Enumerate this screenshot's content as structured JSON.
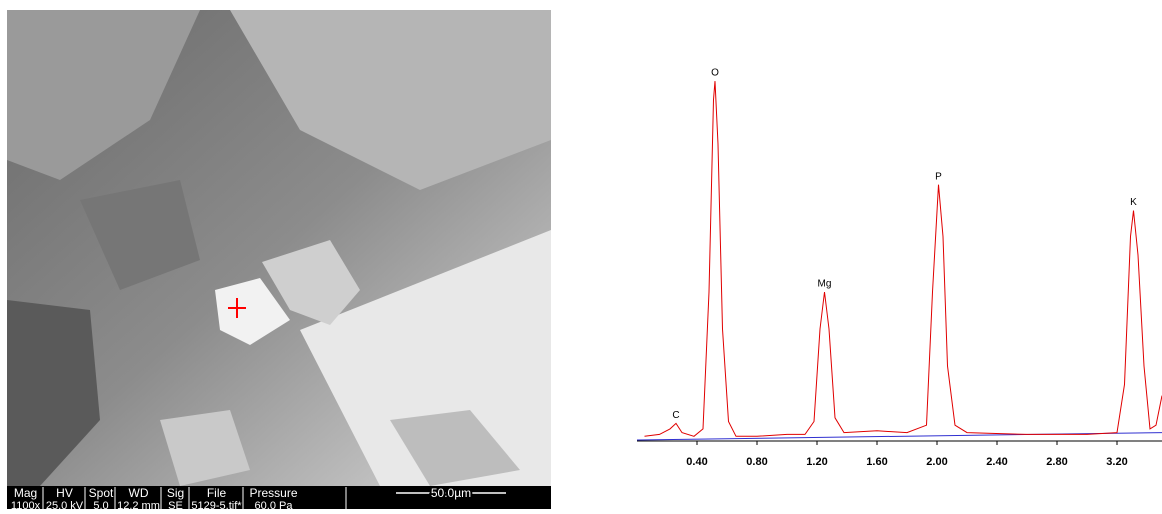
{
  "sem_image": {
    "info_headers": [
      "Mag",
      "HV",
      "Spot",
      "WD",
      "Sig",
      "File",
      "Pressure"
    ],
    "info_values": [
      "1100x",
      "25.0 kV",
      "5.0",
      "12.2 mm",
      "SE",
      "5129-5.tif*",
      "60.0 Pa"
    ],
    "scale_bar": "50.0µm"
  },
  "chart_data": {
    "type": "line",
    "xlim": [
      0,
      3.5
    ],
    "ylim": [
      0,
      100
    ],
    "xticks": [
      {
        "value": 0.4,
        "label": "0.40"
      },
      {
        "value": 0.8,
        "label": "0.80"
      },
      {
        "value": 1.2,
        "label": "1.20"
      },
      {
        "value": 1.6,
        "label": "1.60"
      },
      {
        "value": 2.0,
        "label": "2.00"
      },
      {
        "value": 2.4,
        "label": "2.40"
      },
      {
        "value": 2.8,
        "label": "2.80"
      },
      {
        "value": 3.2,
        "label": "3.20"
      }
    ],
    "series": [
      {
        "color": "#e00000",
        "x": [
          0.05,
          0.15,
          0.22,
          0.26,
          0.3,
          0.38,
          0.44,
          0.48,
          0.51,
          0.52,
          0.54,
          0.57,
          0.61,
          0.66,
          0.8,
          1.0,
          1.12,
          1.18,
          1.22,
          1.25,
          1.28,
          1.32,
          1.38,
          1.6,
          1.8,
          1.93,
          1.97,
          2.01,
          2.04,
          2.07,
          2.12,
          2.2,
          2.6,
          3.0,
          3.2,
          3.25,
          3.29,
          3.31,
          3.34,
          3.38,
          3.42,
          3.46,
          3.5
        ],
        "values": [
          1,
          1.5,
          3,
          4.5,
          2,
          1,
          3,
          40,
          92,
          97,
          80,
          30,
          5,
          1,
          1,
          1.5,
          1.5,
          5,
          30,
          40,
          30,
          6,
          2,
          2.5,
          2,
          4,
          40,
          69,
          55,
          20,
          4,
          2,
          1.5,
          1.5,
          2,
          15,
          55,
          62,
          50,
          20,
          3,
          4,
          12
        ]
      },
      {
        "color": "#3030d0",
        "x": [
          0,
          3.5
        ],
        "values": [
          0,
          2
        ]
      }
    ],
    "annotations": [
      {
        "text": "C",
        "x": 0.26,
        "y": 4.5
      },
      {
        "text": "O",
        "x": 0.52,
        "y": 97
      },
      {
        "text": "Mg",
        "x": 1.25,
        "y": 40
      },
      {
        "text": "P",
        "x": 2.01,
        "y": 69
      },
      {
        "text": "K",
        "x": 3.31,
        "y": 62
      }
    ]
  }
}
